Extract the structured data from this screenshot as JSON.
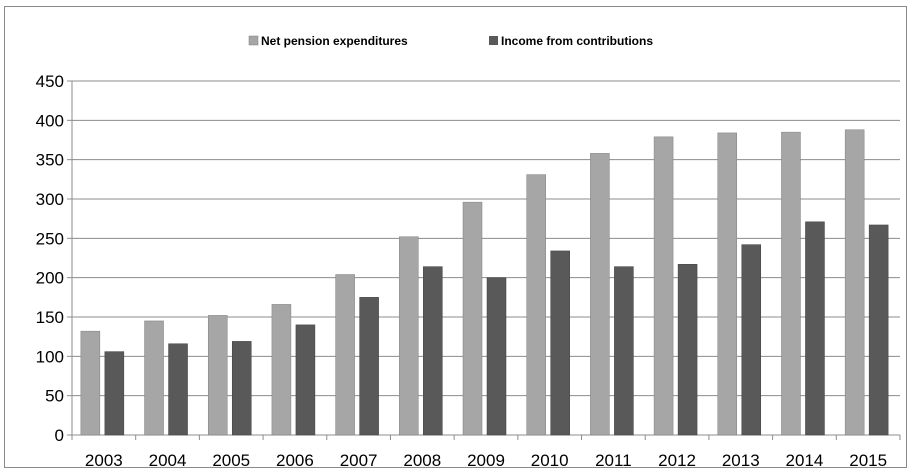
{
  "chart_data": {
    "type": "bar",
    "title": "",
    "xlabel": "",
    "ylabel": "",
    "categories": [
      "2003",
      "2004",
      "2005",
      "2006",
      "2007",
      "2008",
      "2009",
      "2010",
      "2011",
      "2012",
      "2013",
      "2014",
      "2015"
    ],
    "series": [
      {
        "name": "Net pension expenditures",
        "color": "#a6a6a6",
        "values": [
          132,
          145,
          152,
          166,
          204,
          252,
          296,
          331,
          358,
          379,
          384,
          385,
          388
        ]
      },
      {
        "name": "Income from contributions",
        "color": "#595959",
        "values": [
          106,
          116,
          119,
          140,
          175,
          214,
          200,
          234,
          214,
          217,
          242,
          271,
          267
        ]
      }
    ],
    "ylim": [
      0,
      450
    ],
    "yticks": [
      0,
      50,
      100,
      150,
      200,
      250,
      300,
      350,
      400,
      450
    ],
    "grid": true,
    "legend_position": "top-center"
  }
}
